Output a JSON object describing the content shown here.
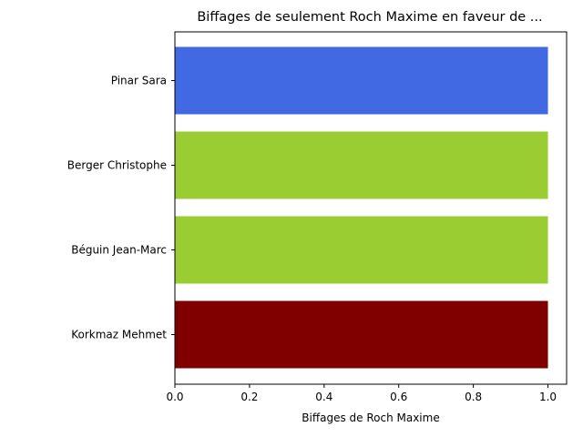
{
  "chart_data": {
    "type": "bar",
    "orientation": "horizontal",
    "title": "Biffages de seulement Roch Maxime en faveur de ...",
    "xlabel": "Biffages de Roch Maxime",
    "ylabel": "",
    "xlim": [
      0,
      1.05
    ],
    "x_ticks": [
      "0.0",
      "0.2",
      "0.4",
      "0.6",
      "0.8",
      "1.0"
    ],
    "x_tick_values": [
      0,
      0.2,
      0.4,
      0.6,
      0.8,
      1.0
    ],
    "categories": [
      "Pinar Sara",
      "Berger Christophe",
      "Béguin Jean-Marc",
      "Korkmaz Mehmet"
    ],
    "values": [
      1,
      1,
      1,
      1
    ],
    "colors": [
      "#4169e1",
      "#9acd32",
      "#9acd32",
      "#800000"
    ],
    "grid": false,
    "legend": "none"
  }
}
